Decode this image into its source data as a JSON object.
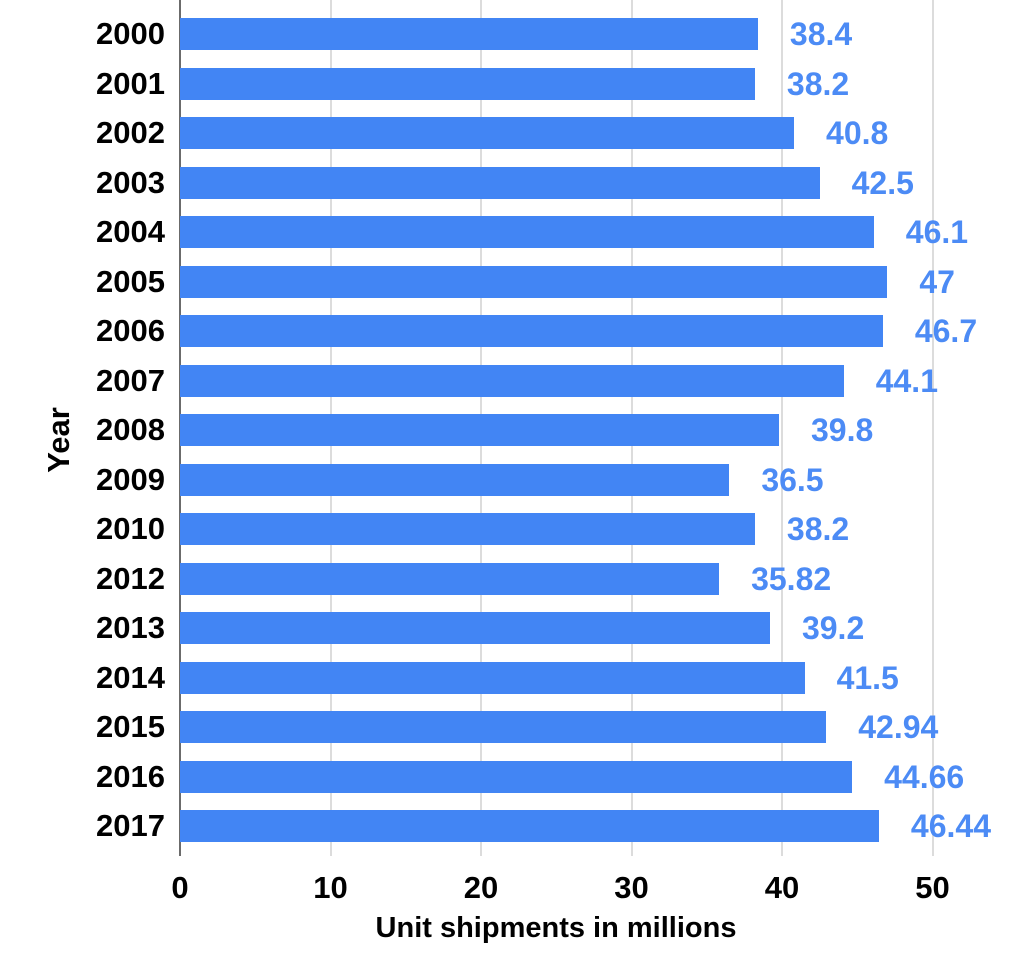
{
  "chart_data": {
    "type": "bar",
    "orientation": "horizontal",
    "title": "",
    "xlabel": "Unit shipments in millions",
    "ylabel": "Year",
    "categories": [
      "2000",
      "2001",
      "2002",
      "2003",
      "2004",
      "2005",
      "2006",
      "2007",
      "2008",
      "2009",
      "2010",
      "2012",
      "2013",
      "2014",
      "2015",
      "2016",
      "2017"
    ],
    "values": [
      38.4,
      38.2,
      40.8,
      42.5,
      46.1,
      47,
      46.7,
      44.1,
      39.8,
      36.5,
      38.2,
      35.82,
      39.2,
      41.5,
      42.94,
      44.66,
      46.44
    ],
    "value_labels": [
      "38.4",
      "38.2",
      "40.8",
      "42.5",
      "46.1",
      "47",
      "46.7",
      "44.1",
      "39.8",
      "36.5",
      "38.2",
      "35.82",
      "39.2",
      "41.5",
      "42.94",
      "44.66",
      "46.44"
    ],
    "x_ticks": [
      0,
      10,
      20,
      30,
      40,
      50
    ],
    "xlim": [
      0,
      56
    ],
    "grid": true,
    "legend": "none",
    "bar_color": "#4285f4",
    "value_label_color": "#4c8bf5",
    "axis_text_color": "#000000"
  }
}
